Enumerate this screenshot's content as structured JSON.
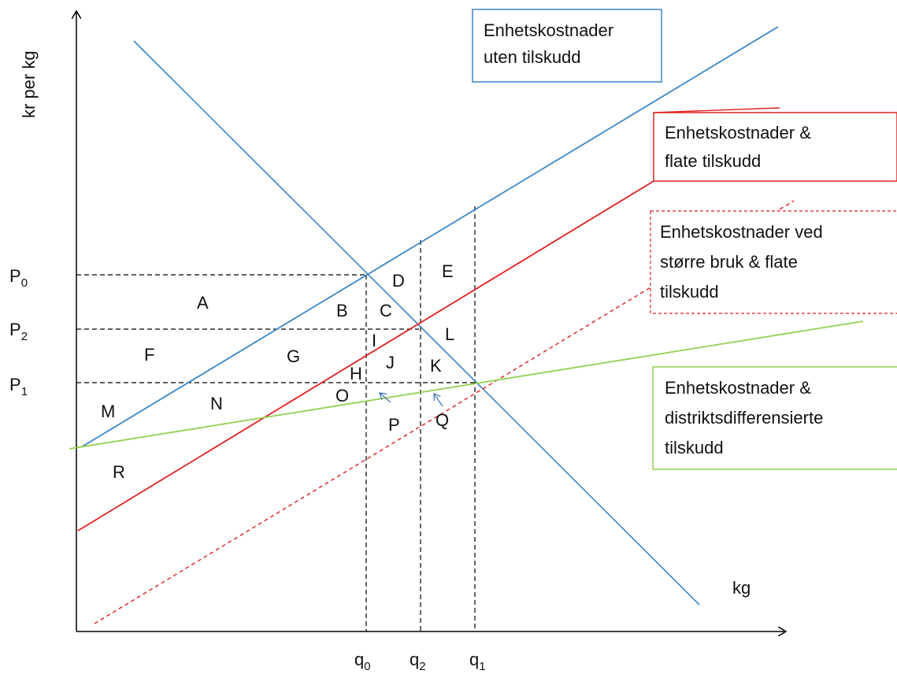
{
  "axes": {
    "y_label": "kr per kg",
    "x_label": "kg"
  },
  "price_labels": [
    {
      "id": "p0",
      "base": "P",
      "sub": "0"
    },
    {
      "id": "p2",
      "base": "P",
      "sub": "2"
    },
    {
      "id": "p1",
      "base": "P",
      "sub": "1"
    }
  ],
  "quantity_labels": [
    {
      "id": "q0",
      "base": "q",
      "sub": "0"
    },
    {
      "id": "q2",
      "base": "q",
      "sub": "2"
    },
    {
      "id": "q1",
      "base": "q",
      "sub": "1"
    }
  ],
  "area_labels": [
    "A",
    "B",
    "C",
    "D",
    "E",
    "F",
    "G",
    "H",
    "I",
    "J",
    "K",
    "L",
    "M",
    "N",
    "O",
    "P",
    "Q",
    "R"
  ],
  "legend": {
    "blue": [
      "Enhetskostnader",
      "uten tilskudd"
    ],
    "red": [
      "Enhetskostnader &",
      "flate tilskudd"
    ],
    "red_dashed": [
      "Enhetskostnader ved",
      "større bruk & flate",
      "tilskudd"
    ],
    "green": [
      "Enhetskostnader &",
      "distriktsdifferensierte",
      "tilskudd"
    ]
  },
  "colors": {
    "blue": "#3a86c8",
    "red": "#e02020",
    "green": "#92d050",
    "black": "#000000"
  }
}
